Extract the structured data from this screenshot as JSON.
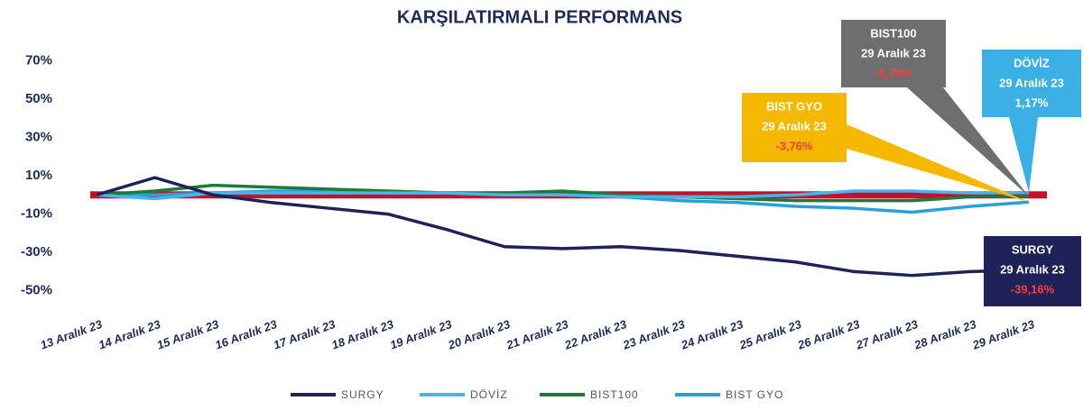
{
  "chart_data": {
    "type": "line",
    "title": "KARŞILATIRMALI PERFORMANS",
    "categories": [
      "13 Aralık 23",
      "14 Aralık 23",
      "15 Aralık 23",
      "16 Aralık 23",
      "17 Aralık 23",
      "18 Aralık 23",
      "19 Aralık 23",
      "20 Aralık 23",
      "21 Aralık 23",
      "22 Aralık 23",
      "23 Aralık 23",
      "24 Aralık 23",
      "25 Aralık 23",
      "26 Aralık 23",
      "27 Aralık 23",
      "28 Aralık 23",
      "29 Aralık 23"
    ],
    "series": [
      {
        "name": "SURGY",
        "color": "#1e2257",
        "box_color": "#1e2257",
        "values": [
          0,
          9,
          0,
          -4,
          -7,
          -10,
          -18,
          -27,
          -28,
          -27,
          -29,
          -32,
          -35,
          -40,
          -42,
          -40,
          -39.16
        ],
        "value_labels": [
          null,
          null,
          null,
          null,
          null,
          null,
          null,
          null,
          null,
          null,
          null,
          null,
          null,
          null,
          null,
          null,
          "-39,16%"
        ]
      },
      {
        "name": "DÖVİZ",
        "color": "#45b6ea",
        "box_color": "#3bb0e4",
        "values": [
          0,
          -2,
          1,
          1,
          1,
          1,
          1,
          0,
          0,
          -1,
          -1,
          -1,
          0,
          2,
          2,
          1,
          1.17
        ],
        "value_labels": [
          null,
          null,
          null,
          null,
          null,
          null,
          null,
          null,
          null,
          null,
          null,
          null,
          null,
          null,
          null,
          null,
          "1,17%"
        ]
      },
      {
        "name": "BIST100",
        "color": "#1f7a3a",
        "box_color": "#6d6e70",
        "values": [
          0,
          2,
          5,
          4,
          3,
          2,
          1,
          1,
          2,
          0,
          -1,
          -2,
          -3,
          -3,
          -3,
          -1,
          -0.79
        ],
        "value_labels": [
          null,
          null,
          null,
          null,
          null,
          null,
          null,
          null,
          null,
          null,
          null,
          null,
          null,
          null,
          null,
          null,
          "-0,79%"
        ]
      },
      {
        "name": "BIST GYO",
        "color": "#2a9fd8",
        "box_color": "#f5b800",
        "values": [
          0,
          0,
          1,
          2,
          2,
          1,
          1,
          1,
          0,
          -1,
          -3,
          -4,
          -6,
          -7,
          -9,
          -6,
          -3.76
        ],
        "value_labels": [
          null,
          null,
          null,
          null,
          null,
          null,
          null,
          null,
          null,
          null,
          null,
          null,
          null,
          null,
          null,
          null,
          "-3,76%"
        ]
      }
    ],
    "ylim": [
      -60,
      80
    ],
    "yticks": [
      {
        "value": 70,
        "label": "70%"
      },
      {
        "value": 50,
        "label": "50%"
      },
      {
        "value": 30,
        "label": "30%"
      },
      {
        "value": 10,
        "label": "10%"
      },
      {
        "value": -10,
        "label": "-10%"
      },
      {
        "value": -30,
        "label": "-30%"
      },
      {
        "value": -50,
        "label": "-50%"
      }
    ]
  }
}
